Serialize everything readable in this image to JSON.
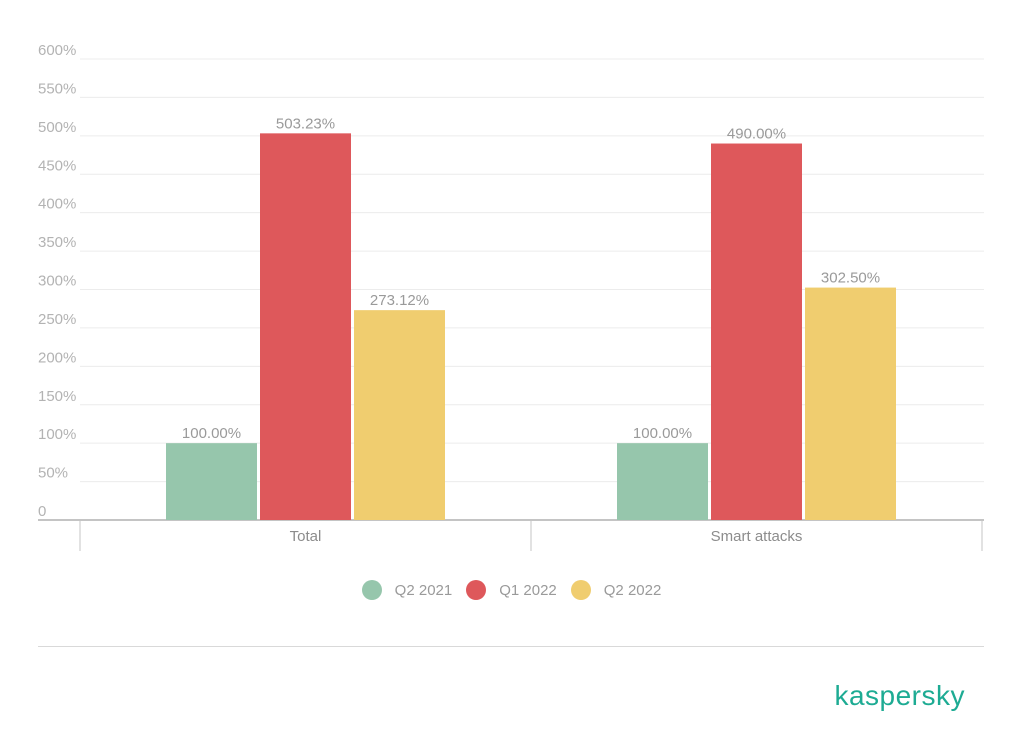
{
  "chart_data": {
    "type": "bar",
    "categories": [
      "Total",
      "Smart attacks"
    ],
    "series": [
      {
        "name": "Q2 2021",
        "values": [
          100.0,
          100.0
        ],
        "labels": [
          "100.00%",
          "100.00%"
        ],
        "color": "#96c6ac"
      },
      {
        "name": "Q1 2022",
        "values": [
          503.23,
          490.0
        ],
        "labels": [
          "503.23%",
          "490.00%"
        ],
        "color": "#de585b"
      },
      {
        "name": "Q2 2022",
        "values": [
          273.12,
          302.5
        ],
        "labels": [
          "273.12%",
          "302.50%"
        ],
        "color": "#f0cd6f"
      }
    ],
    "yticks": [
      "0",
      "50%",
      "100%",
      "150%",
      "200%",
      "250%",
      "300%",
      "350%",
      "400%",
      "450%",
      "500%",
      "550%",
      "600%"
    ],
    "ylim": [
      0,
      600
    ],
    "grid": true,
    "legend": "bottom-center"
  },
  "brand": {
    "logo_text": "kaspersky",
    "color": "#1dab93"
  }
}
